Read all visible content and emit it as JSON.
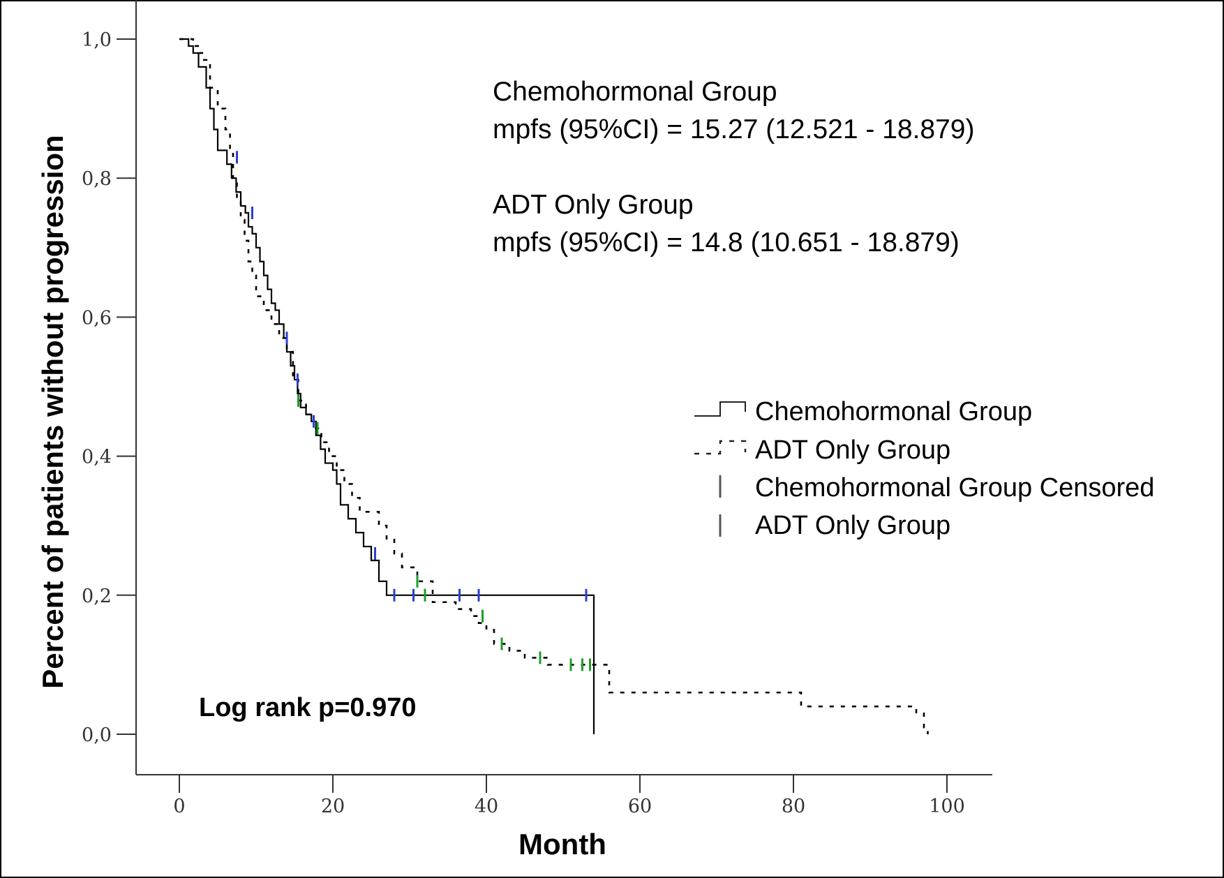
{
  "chart_data": {
    "type": "line",
    "subtype": "kaplan-meier step plot",
    "xlabel": "Month",
    "ylabel": "Percent of patients without progression",
    "xlim": [
      -6,
      106
    ],
    "ylim": [
      -0.06,
      1.06
    ],
    "x_ticks": [
      0,
      20,
      40,
      60,
      80,
      100
    ],
    "x_tick_labels": [
      "0",
      "20",
      "40",
      "60",
      "80",
      "100"
    ],
    "y_ticks": [
      0.0,
      0.2,
      0.4,
      0.6,
      0.8,
      1.0
    ],
    "y_tick_labels": [
      "0,0",
      "0,2",
      "0,4",
      "0,6",
      "0,8",
      "1,0"
    ],
    "grid": false,
    "annotations": [
      "Chemohormonal Group",
      "mpfs (95%CI) = 15.27 (12.521 - 18.879)",
      "ADT Only Group",
      "mpfs (95%CI) = 14.8 (10.651 - 18.879)"
    ],
    "log_rank_text": "Log rank p=0.970",
    "legend_position": "right",
    "legend": [
      {
        "label": "Chemohormonal Group",
        "marker": "solid-step"
      },
      {
        "label": "ADT Only Group",
        "marker": "dotted-step"
      },
      {
        "label": "Chemohormonal Group Censored",
        "marker": "tick"
      },
      {
        "label": "ADT Only Group",
        "marker": "tick"
      }
    ],
    "series": [
      {
        "name": "Chemohormonal Group",
        "style": "solid",
        "color": "#000000",
        "censor_color": "#2a3fd6",
        "steps": [
          [
            0,
            1.0
          ],
          [
            1.2,
            0.99
          ],
          [
            1.8,
            0.98
          ],
          [
            2.5,
            0.96
          ],
          [
            3.5,
            0.93
          ],
          [
            4.0,
            0.9
          ],
          [
            4.5,
            0.87
          ],
          [
            5.0,
            0.84
          ],
          [
            6.2,
            0.82
          ],
          [
            6.8,
            0.8
          ],
          [
            7.4,
            0.78
          ],
          [
            8.0,
            0.76
          ],
          [
            8.6,
            0.75
          ],
          [
            9.0,
            0.73
          ],
          [
            9.5,
            0.72
          ],
          [
            10.0,
            0.7
          ],
          [
            10.5,
            0.68
          ],
          [
            11.0,
            0.66
          ],
          [
            11.5,
            0.64
          ],
          [
            12.0,
            0.62
          ],
          [
            12.5,
            0.61
          ],
          [
            13.0,
            0.59
          ],
          [
            13.6,
            0.57
          ],
          [
            14.0,
            0.55
          ],
          [
            14.5,
            0.53
          ],
          [
            15.0,
            0.51
          ],
          [
            15.4,
            0.49
          ],
          [
            15.8,
            0.47
          ],
          [
            16.5,
            0.46
          ],
          [
            17.2,
            0.45
          ],
          [
            17.8,
            0.43
          ],
          [
            18.4,
            0.41
          ],
          [
            19.0,
            0.39
          ],
          [
            20.0,
            0.38
          ],
          [
            20.5,
            0.36
          ],
          [
            21.0,
            0.33
          ],
          [
            22.0,
            0.31
          ],
          [
            23.0,
            0.29
          ],
          [
            24.0,
            0.27
          ],
          [
            25.0,
            0.25
          ],
          [
            26.0,
            0.22
          ],
          [
            27.0,
            0.2
          ],
          [
            54.0,
            0.0
          ]
        ],
        "censored": [
          [
            7.5,
            0.83
          ],
          [
            9.5,
            0.75
          ],
          [
            14.0,
            0.57
          ],
          [
            15.4,
            0.51
          ],
          [
            17.5,
            0.45
          ],
          [
            25.5,
            0.26
          ],
          [
            28.0,
            0.2
          ],
          [
            30.5,
            0.2
          ],
          [
            32.0,
            0.2
          ],
          [
            36.5,
            0.2
          ],
          [
            39.0,
            0.2
          ],
          [
            53.0,
            0.2
          ]
        ]
      },
      {
        "name": "ADT Only Group",
        "style": "dotted",
        "color": "#000000",
        "censor_color": "#1f9e2a",
        "steps": [
          [
            0,
            1.0
          ],
          [
            1.8,
            0.99
          ],
          [
            2.6,
            0.98
          ],
          [
            3.2,
            0.97
          ],
          [
            4.0,
            0.93
          ],
          [
            5.0,
            0.9
          ],
          [
            6.0,
            0.87
          ],
          [
            6.6,
            0.84
          ],
          [
            7.0,
            0.8
          ],
          [
            7.5,
            0.77
          ],
          [
            8.0,
            0.74
          ],
          [
            8.5,
            0.71
          ],
          [
            9.0,
            0.68
          ],
          [
            9.5,
            0.66
          ],
          [
            10.0,
            0.63
          ],
          [
            11.0,
            0.61
          ],
          [
            12.0,
            0.59
          ],
          [
            13.0,
            0.57
          ],
          [
            14.0,
            0.55
          ],
          [
            14.8,
            0.51
          ],
          [
            15.5,
            0.48
          ],
          [
            16.5,
            0.46
          ],
          [
            17.5,
            0.44
          ],
          [
            18.5,
            0.42
          ],
          [
            19.5,
            0.4
          ],
          [
            20.5,
            0.38
          ],
          [
            21.5,
            0.36
          ],
          [
            22.5,
            0.34
          ],
          [
            23.5,
            0.32
          ],
          [
            26.0,
            0.3
          ],
          [
            27.0,
            0.28
          ],
          [
            28.0,
            0.26
          ],
          [
            29.0,
            0.24
          ],
          [
            31.0,
            0.22
          ],
          [
            33.0,
            0.19
          ],
          [
            36.0,
            0.18
          ],
          [
            38.0,
            0.17
          ],
          [
            39.0,
            0.16
          ],
          [
            40.0,
            0.15
          ],
          [
            41.0,
            0.13
          ],
          [
            43.0,
            0.12
          ],
          [
            45.0,
            0.11
          ],
          [
            48.0,
            0.1
          ],
          [
            56.0,
            0.06
          ],
          [
            81.0,
            0.04
          ],
          [
            96.0,
            0.03
          ],
          [
            97.0,
            0.01
          ],
          [
            97.5,
            0.0
          ]
        ],
        "censored": [
          [
            15.5,
            0.48
          ],
          [
            18.0,
            0.44
          ],
          [
            31.0,
            0.22
          ],
          [
            32.0,
            0.2
          ],
          [
            39.5,
            0.17
          ],
          [
            42.0,
            0.13
          ],
          [
            47.0,
            0.11
          ],
          [
            51.0,
            0.1
          ],
          [
            52.5,
            0.1
          ],
          [
            53.5,
            0.1
          ]
        ]
      }
    ]
  }
}
